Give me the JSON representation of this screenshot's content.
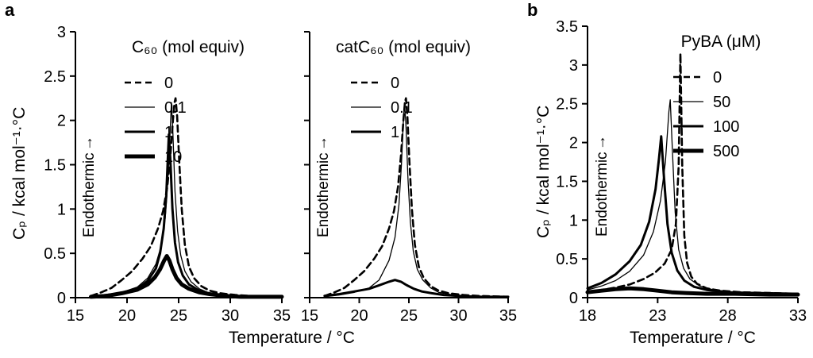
{
  "panel_a": {
    "label": "a",
    "xlabel": "Temperature / °C",
    "ylabel": "Cₚ / kcal mol⁻¹·°C",
    "endothermic": "Endothermic"
  },
  "panel_b": {
    "label": "b",
    "xlabel": "Temperature / °C",
    "ylabel": "Cₚ / kcal mol⁻¹·°C",
    "endothermic": "Endothermic"
  },
  "glyphs": {
    "up_arrow": "↑"
  },
  "chart_data": [
    {
      "id": "plot-a-left",
      "type": "line",
      "title": "",
      "xlabel": "Temperature / °C",
      "ylabel": "Cₚ / kcal mol⁻¹·°C",
      "xlim": [
        15,
        35
      ],
      "ylim": [
        0,
        3
      ],
      "xticks": [
        15,
        20,
        25,
        30,
        35
      ],
      "yticks": [
        0,
        0.5,
        1,
        1.5,
        2,
        2.5,
        3
      ],
      "ytick_labels": [
        "0",
        "0.5",
        "1",
        "1.5",
        "2",
        "2.5",
        "3"
      ],
      "show_ytick_labels": true,
      "grid": false,
      "annotation": "Endothermic ↑",
      "legend": {
        "title": "C₆₀ (mol equiv)",
        "position": "upper right inside",
        "entries": [
          {
            "label": "0",
            "style": "dashed"
          },
          {
            "label": "0.1",
            "style": "thin"
          },
          {
            "label": "1",
            "style": "medium"
          },
          {
            "label": "10",
            "style": "thick"
          }
        ]
      },
      "series": [
        {
          "name": "0",
          "style": "dashed",
          "points": [
            [
              16.5,
              0.02
            ],
            [
              17.5,
              0.06
            ],
            [
              18.5,
              0.11
            ],
            [
              19.5,
              0.2
            ],
            [
              20.5,
              0.3
            ],
            [
              21.5,
              0.44
            ],
            [
              22.3,
              0.58
            ],
            [
              23,
              0.78
            ],
            [
              23.5,
              0.98
            ],
            [
              23.9,
              1.25
            ],
            [
              24.2,
              1.6
            ],
            [
              24.45,
              2.0
            ],
            [
              24.6,
              2.2
            ],
            [
              24.7,
              2.25
            ],
            [
              24.85,
              2.05
            ],
            [
              25.05,
              1.55
            ],
            [
              25.3,
              1.0
            ],
            [
              25.6,
              0.6
            ],
            [
              26,
              0.35
            ],
            [
              26.5,
              0.22
            ],
            [
              27.2,
              0.13
            ],
            [
              28,
              0.08
            ],
            [
              29,
              0.05
            ],
            [
              30.5,
              0.03
            ],
            [
              32,
              0.02
            ],
            [
              35,
              0.01
            ]
          ]
        },
        {
          "name": "0.1",
          "style": "thin",
          "points": [
            [
              16.5,
              0.01
            ],
            [
              18,
              0.03
            ],
            [
              19.5,
              0.06
            ],
            [
              21,
              0.12
            ],
            [
              22,
              0.22
            ],
            [
              22.8,
              0.38
            ],
            [
              23.3,
              0.58
            ],
            [
              23.7,
              0.9
            ],
            [
              23.95,
              1.3
            ],
            [
              24.15,
              1.8
            ],
            [
              24.3,
              2.2
            ],
            [
              24.45,
              1.85
            ],
            [
              24.65,
              1.2
            ],
            [
              24.9,
              0.75
            ],
            [
              25.2,
              0.48
            ],
            [
              25.6,
              0.3
            ],
            [
              26.2,
              0.18
            ],
            [
              27,
              0.1
            ],
            [
              28,
              0.05
            ],
            [
              29.5,
              0.03
            ],
            [
              31,
              0.02
            ],
            [
              35,
              0.01
            ]
          ]
        },
        {
          "name": "1",
          "style": "medium",
          "points": [
            [
              16.5,
              0.01
            ],
            [
              18,
              0.03
            ],
            [
              19.5,
              0.05
            ],
            [
              21,
              0.1
            ],
            [
              22,
              0.19
            ],
            [
              22.8,
              0.33
            ],
            [
              23.2,
              0.5
            ],
            [
              23.55,
              0.78
            ],
            [
              23.8,
              1.15
            ],
            [
              23.95,
              1.55
            ],
            [
              24.05,
              1.84
            ],
            [
              24.2,
              1.55
            ],
            [
              24.4,
              1.0
            ],
            [
              24.65,
              0.62
            ],
            [
              24.95,
              0.4
            ],
            [
              25.4,
              0.25
            ],
            [
              26,
              0.15
            ],
            [
              27,
              0.08
            ],
            [
              28,
              0.04
            ],
            [
              29.5,
              0.02
            ],
            [
              31,
              0.01
            ],
            [
              35,
              0.01
            ]
          ]
        },
        {
          "name": "10",
          "style": "thick",
          "points": [
            [
              16.5,
              0.01
            ],
            [
              18,
              0.02
            ],
            [
              19.5,
              0.05
            ],
            [
              21,
              0.09
            ],
            [
              22,
              0.15
            ],
            [
              22.7,
              0.23
            ],
            [
              23.2,
              0.32
            ],
            [
              23.6,
              0.42
            ],
            [
              23.85,
              0.47
            ],
            [
              24.1,
              0.42
            ],
            [
              24.4,
              0.32
            ],
            [
              24.8,
              0.22
            ],
            [
              25.3,
              0.15
            ],
            [
              26,
              0.1
            ],
            [
              27,
              0.06
            ],
            [
              28,
              0.04
            ],
            [
              29.5,
              0.02
            ],
            [
              31,
              0.01
            ],
            [
              35,
              0.01
            ]
          ]
        }
      ]
    },
    {
      "id": "plot-a-right",
      "type": "line",
      "title": "",
      "xlabel": "Temperature / °C",
      "xlim": [
        15,
        35
      ],
      "ylim": [
        0,
        3
      ],
      "xticks": [
        15,
        20,
        25,
        30,
        35
      ],
      "yticks": [
        0,
        0.5,
        1,
        1.5,
        2,
        2.5,
        3
      ],
      "ytick_labels": [],
      "show_ytick_labels": false,
      "grid": false,
      "annotation": "Endothermic ↑",
      "legend": {
        "title": "catC₆₀ (mol equiv)",
        "position": "upper right inside",
        "entries": [
          {
            "label": "0",
            "style": "dashed"
          },
          {
            "label": "0.1",
            "style": "thin"
          },
          {
            "label": "1",
            "style": "medium"
          }
        ]
      },
      "series": [
        {
          "name": "0",
          "style": "dashed",
          "points": [
            [
              16.5,
              0.02
            ],
            [
              17.5,
              0.06
            ],
            [
              18.5,
              0.11
            ],
            [
              19.5,
              0.2
            ],
            [
              20.5,
              0.3
            ],
            [
              21.5,
              0.44
            ],
            [
              22.3,
              0.58
            ],
            [
              23,
              0.78
            ],
            [
              23.5,
              0.98
            ],
            [
              23.9,
              1.25
            ],
            [
              24.2,
              1.6
            ],
            [
              24.45,
              2.0
            ],
            [
              24.6,
              2.2
            ],
            [
              24.7,
              2.25
            ],
            [
              24.85,
              2.05
            ],
            [
              25.05,
              1.55
            ],
            [
              25.3,
              1.0
            ],
            [
              25.6,
              0.6
            ],
            [
              26,
              0.35
            ],
            [
              26.5,
              0.22
            ],
            [
              27.2,
              0.13
            ],
            [
              28,
              0.08
            ],
            [
              29,
              0.05
            ],
            [
              30.5,
              0.03
            ],
            [
              32,
              0.02
            ],
            [
              35,
              0.01
            ]
          ]
        },
        {
          "name": "0.1",
          "style": "thin",
          "points": [
            [
              16.5,
              0.01
            ],
            [
              18,
              0.03
            ],
            [
              19.5,
              0.06
            ],
            [
              21,
              0.11
            ],
            [
              22,
              0.2
            ],
            [
              23,
              0.42
            ],
            [
              23.6,
              0.68
            ],
            [
              24,
              1.05
            ],
            [
              24.25,
              1.5
            ],
            [
              24.45,
              2.0
            ],
            [
              24.55,
              2.2
            ],
            [
              24.7,
              1.95
            ],
            [
              24.9,
              1.35
            ],
            [
              25.15,
              0.85
            ],
            [
              25.45,
              0.52
            ],
            [
              25.85,
              0.32
            ],
            [
              26.4,
              0.2
            ],
            [
              27.2,
              0.11
            ],
            [
              28,
              0.06
            ],
            [
              29.5,
              0.03
            ],
            [
              31,
              0.02
            ],
            [
              35,
              0.01
            ]
          ]
        },
        {
          "name": "1",
          "style": "medium",
          "points": [
            [
              16.5,
              0.02
            ],
            [
              18,
              0.04
            ],
            [
              19.5,
              0.07
            ],
            [
              21,
              0.1
            ],
            [
              22,
              0.14
            ],
            [
              23,
              0.18
            ],
            [
              23.6,
              0.2
            ],
            [
              24.2,
              0.18
            ],
            [
              24.8,
              0.14
            ],
            [
              25.5,
              0.1
            ],
            [
              26.3,
              0.07
            ],
            [
              27.3,
              0.05
            ],
            [
              28.5,
              0.03
            ],
            [
              30,
              0.02
            ],
            [
              32,
              0.01
            ],
            [
              35,
              0.01
            ]
          ]
        }
      ]
    },
    {
      "id": "plot-b",
      "type": "line",
      "title": "",
      "xlabel": "Temperature / °C",
      "ylabel": "Cₚ / kcal mol⁻¹·°C",
      "xlim": [
        18,
        33
      ],
      "ylim": [
        0,
        3.5
      ],
      "xticks": [
        18,
        23,
        28,
        33
      ],
      "yticks": [
        0,
        0.5,
        1,
        1.5,
        2,
        2.5,
        3,
        3.5
      ],
      "ytick_labels": [
        "0",
        "0.5",
        "1",
        "1.5",
        "2",
        "2.5",
        "3",
        "3.5"
      ],
      "show_ytick_labels": true,
      "grid": false,
      "annotation": "Endothermic ↑",
      "legend": {
        "title": "PyBA (μM)",
        "position": "upper right inside",
        "entries": [
          {
            "label": "0",
            "style": "dashed"
          },
          {
            "label": "50",
            "style": "thin"
          },
          {
            "label": "100",
            "style": "medium"
          },
          {
            "label": "500",
            "style": "thick"
          }
        ]
      },
      "series": [
        {
          "name": "0",
          "style": "dashed",
          "points": [
            [
              18,
              0.07
            ],
            [
              19,
              0.1
            ],
            [
              20,
              0.13
            ],
            [
              21,
              0.17
            ],
            [
              22,
              0.24
            ],
            [
              22.8,
              0.32
            ],
            [
              23.5,
              0.44
            ],
            [
              24,
              0.62
            ],
            [
              24.3,
              0.95
            ],
            [
              24.5,
              1.7
            ],
            [
              24.62,
              3.15
            ],
            [
              24.75,
              1.7
            ],
            [
              24.9,
              0.8
            ],
            [
              25.1,
              0.45
            ],
            [
              25.4,
              0.27
            ],
            [
              25.8,
              0.18
            ],
            [
              26.5,
              0.12
            ],
            [
              27.5,
              0.09
            ],
            [
              29,
              0.07
            ],
            [
              31,
              0.06
            ],
            [
              33,
              0.05
            ]
          ]
        },
        {
          "name": "50",
          "style": "thin",
          "points": [
            [
              18,
              0.1
            ],
            [
              19,
              0.15
            ],
            [
              20,
              0.22
            ],
            [
              21,
              0.34
            ],
            [
              22,
              0.55
            ],
            [
              22.7,
              0.85
            ],
            [
              23.2,
              1.25
            ],
            [
              23.55,
              1.75
            ],
            [
              23.8,
              2.4
            ],
            [
              23.9,
              2.55
            ],
            [
              24.05,
              1.9
            ],
            [
              24.25,
              1.1
            ],
            [
              24.5,
              0.62
            ],
            [
              24.85,
              0.38
            ],
            [
              25.3,
              0.24
            ],
            [
              26,
              0.15
            ],
            [
              27,
              0.1
            ],
            [
              28.5,
              0.07
            ],
            [
              30.5,
              0.06
            ],
            [
              33,
              0.05
            ]
          ]
        },
        {
          "name": "100",
          "style": "medium",
          "points": [
            [
              18,
              0.12
            ],
            [
              19,
              0.19
            ],
            [
              20,
              0.3
            ],
            [
              21,
              0.47
            ],
            [
              21.8,
              0.68
            ],
            [
              22.4,
              0.98
            ],
            [
              22.85,
              1.4
            ],
            [
              23.1,
              1.8
            ],
            [
              23.25,
              2.08
            ],
            [
              23.45,
              1.55
            ],
            [
              23.7,
              0.95
            ],
            [
              24,
              0.58
            ],
            [
              24.4,
              0.35
            ],
            [
              24.9,
              0.22
            ],
            [
              25.6,
              0.14
            ],
            [
              26.5,
              0.1
            ],
            [
              28,
              0.07
            ],
            [
              30,
              0.06
            ],
            [
              33,
              0.05
            ]
          ]
        },
        {
          "name": "500",
          "style": "thick",
          "points": [
            [
              18,
              0.07
            ],
            [
              19,
              0.09
            ],
            [
              20,
              0.11
            ],
            [
              21,
              0.12
            ],
            [
              22,
              0.11
            ],
            [
              23,
              0.09
            ],
            [
              24,
              0.07
            ],
            [
              25,
              0.06
            ],
            [
              26.5,
              0.05
            ],
            [
              28.5,
              0.05
            ],
            [
              31,
              0.04
            ],
            [
              33,
              0.04
            ]
          ]
        }
      ]
    }
  ]
}
